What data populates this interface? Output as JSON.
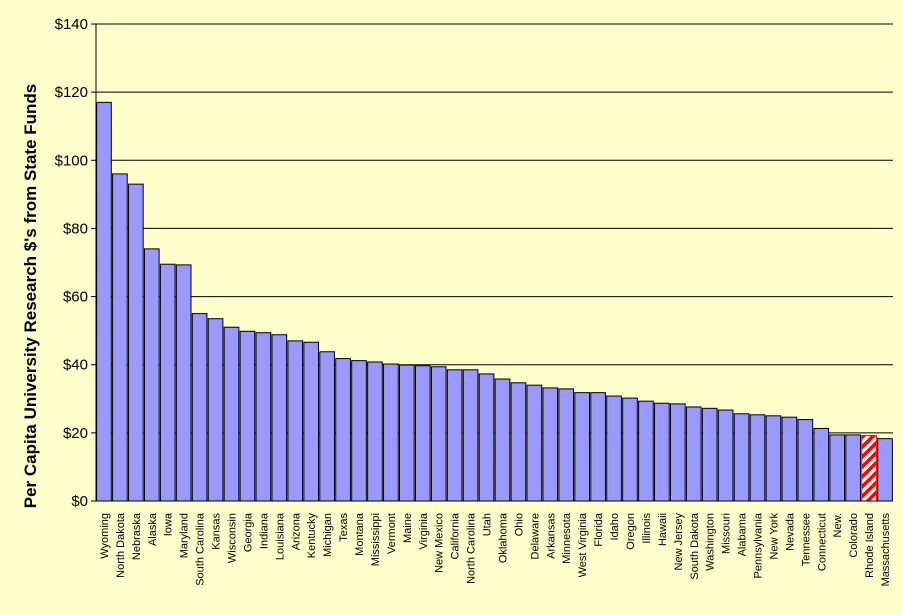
{
  "chart_data": {
    "type": "bar",
    "title": "",
    "xlabel": "",
    "ylabel": "Per Capita University Research $'s from State Funds",
    "ylim": [
      0,
      140
    ],
    "yticks": [
      0,
      20,
      40,
      60,
      80,
      100,
      120,
      140
    ],
    "ytick_labels": [
      "$0",
      "$20",
      "$40",
      "$60",
      "$80",
      "$100",
      "$120",
      "$140"
    ],
    "grid": true,
    "legend": "none",
    "colors": {
      "background": "#ffffcc",
      "plot_background": "#ffffcc",
      "bar_fill": "#9999ff",
      "bar_stroke": "#000000",
      "highlight_fill": "#ff0000",
      "highlight_hatch": "#ffffff",
      "gridline": "#000000"
    },
    "highlight_category": "Rhode Island",
    "categories": [
      "Wyoming",
      "North Dakota",
      "Nebraska",
      "Alaska",
      "Iowa",
      "Maryland",
      "South Carolina",
      "Kansas",
      "Wisconsin",
      "Georgia",
      "Indiana",
      "Louisiana",
      "Arizona",
      "Kentucky",
      "Michigan",
      "Texas",
      "Montana",
      "Mississippi",
      "Vermont",
      "Maine",
      "Virginia",
      "New Mexico",
      "California",
      "North Carolina",
      "Utah",
      "Oklahoma",
      "Ohio",
      "Delaware",
      "Arkansas",
      "Minnesota",
      "West Virginia",
      "Florida",
      "Idaho",
      "Oregon",
      "Illinois",
      "Hawaii",
      "New Jersey",
      "South Dakota",
      "Washington",
      "Missouri",
      "Alabama",
      "Pennsylvania",
      "New York",
      "Nevada",
      "Tennessee",
      "Connecticut",
      "New.",
      "Colorado",
      "Rhode Island",
      "Massachusetts"
    ],
    "values": [
      117,
      96,
      93,
      74,
      69.5,
      69.3,
      55,
      53.5,
      51,
      49.8,
      49.4,
      48.8,
      47,
      46.6,
      43.8,
      41.8,
      41.2,
      40.8,
      40.2,
      39.9,
      39.7,
      39.4,
      38.5,
      38.5,
      37.3,
      35.8,
      34.7,
      34,
      33.2,
      32.9,
      31.8,
      31.8,
      30.8,
      30.2,
      29.3,
      28.7,
      28.5,
      27.6,
      27.2,
      26.7,
      25.6,
      25.3,
      25,
      24.6,
      23.9,
      21.3,
      19.4,
      19.4,
      19.2,
      18.3
    ]
  }
}
